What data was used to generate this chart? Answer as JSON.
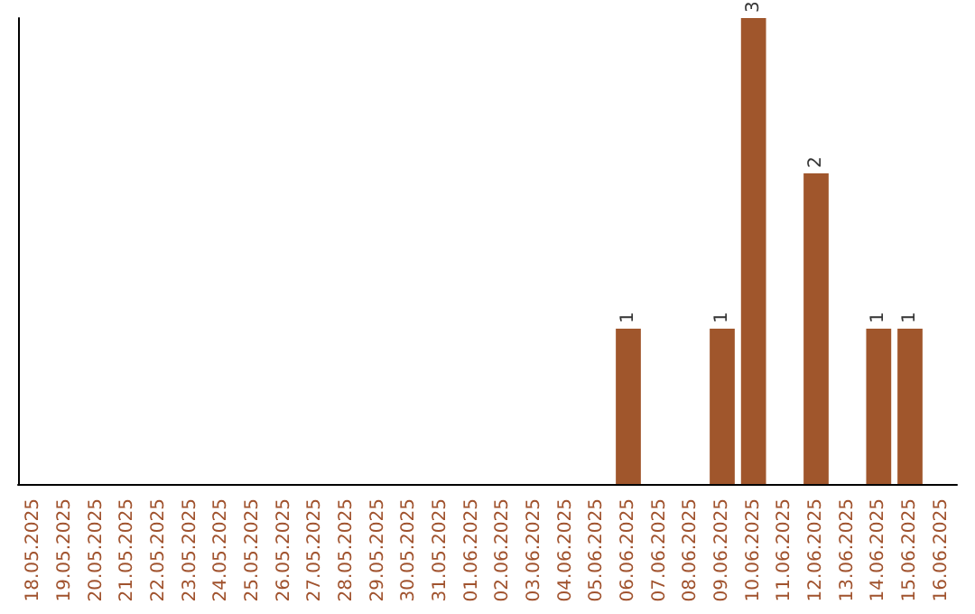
{
  "chart_data": {
    "type": "bar",
    "categories": [
      "18.05.2025",
      "19.05.2025",
      "20.05.2025",
      "21.05.2025",
      "22.05.2025",
      "23.05.2025",
      "24.05.2025",
      "25.05.2025",
      "26.05.2025",
      "27.05.2025",
      "28.05.2025",
      "29.05.2025",
      "30.05.2025",
      "31.05.2025",
      "01.06.2025",
      "02.06.2025",
      "03.06.2025",
      "04.06.2025",
      "05.06.2025",
      "06.06.2025",
      "07.06.2025",
      "08.06.2025",
      "09.06.2025",
      "10.06.2025",
      "11.06.2025",
      "12.06.2025",
      "13.06.2025",
      "14.06.2025",
      "15.06.2025",
      "16.06.2025"
    ],
    "values": [
      null,
      null,
      null,
      null,
      null,
      null,
      null,
      null,
      null,
      null,
      null,
      null,
      null,
      null,
      null,
      null,
      null,
      null,
      null,
      1,
      null,
      null,
      1,
      3,
      null,
      2,
      null,
      1,
      1,
      null
    ],
    "color": "#a0562c",
    "data_labels": true
  }
}
